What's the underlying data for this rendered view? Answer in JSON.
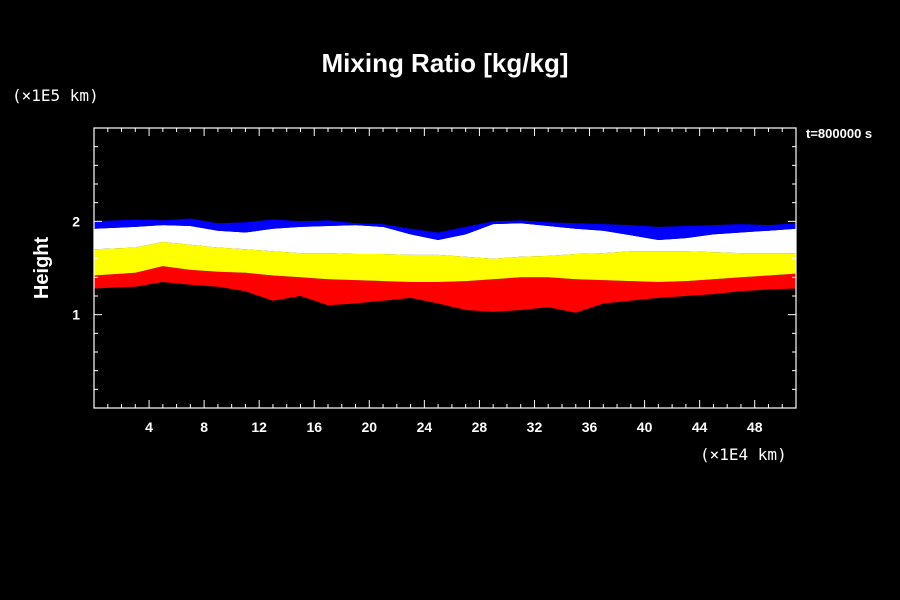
{
  "chart_data": {
    "type": "heatmap",
    "title": "Mixing Ratio [kg/kg]",
    "ylabel": "Height",
    "xlabel": "",
    "x_unit": "(×1E4 km)",
    "y_unit": "(×1E5 km)",
    "time_label": "t=800000 s",
    "xlim": [
      0,
      51
    ],
    "ylim": [
      0,
      3
    ],
    "x_ticks": [
      4,
      8,
      12,
      16,
      20,
      24,
      28,
      32,
      36,
      40,
      44,
      48
    ],
    "y_ticks": [
      1,
      2
    ],
    "grid": false,
    "colors": {
      "background": "#000000",
      "plot": "#000000",
      "text": "#ffffff",
      "frame": "#ffffff"
    },
    "series": [
      {
        "color": "#ff0000",
        "x": [
          0,
          3,
          5,
          7,
          9,
          11,
          13,
          15,
          17,
          19,
          21,
          23,
          25,
          27,
          29,
          31,
          33,
          35,
          37,
          39,
          41,
          43,
          45,
          47,
          49,
          51
        ],
        "lower": [
          1.28,
          1.3,
          1.35,
          1.32,
          1.3,
          1.25,
          1.15,
          1.2,
          1.1,
          1.12,
          1.15,
          1.18,
          1.12,
          1.05,
          1.03,
          1.05,
          1.08,
          1.02,
          1.12,
          1.15,
          1.18,
          1.2,
          1.22,
          1.25,
          1.27,
          1.28
        ],
        "upper": [
          1.42,
          1.45,
          1.52,
          1.48,
          1.46,
          1.45,
          1.42,
          1.4,
          1.38,
          1.37,
          1.36,
          1.35,
          1.35,
          1.36,
          1.38,
          1.4,
          1.4,
          1.38,
          1.37,
          1.36,
          1.35,
          1.36,
          1.38,
          1.4,
          1.42,
          1.44
        ]
      },
      {
        "color": "#ffff00",
        "x": [
          0,
          3,
          5,
          7,
          9,
          11,
          13,
          15,
          17,
          19,
          21,
          23,
          25,
          27,
          29,
          31,
          33,
          35,
          37,
          39,
          41,
          43,
          45,
          47,
          49,
          51
        ],
        "lower": [
          1.42,
          1.45,
          1.52,
          1.48,
          1.46,
          1.45,
          1.42,
          1.4,
          1.38,
          1.37,
          1.36,
          1.35,
          1.35,
          1.36,
          1.38,
          1.4,
          1.4,
          1.38,
          1.37,
          1.36,
          1.35,
          1.36,
          1.38,
          1.4,
          1.42,
          1.44
        ],
        "upper": [
          1.7,
          1.72,
          1.78,
          1.75,
          1.72,
          1.7,
          1.68,
          1.66,
          1.66,
          1.65,
          1.65,
          1.64,
          1.64,
          1.62,
          1.6,
          1.62,
          1.63,
          1.65,
          1.66,
          1.68,
          1.68,
          1.68,
          1.67,
          1.66,
          1.66,
          1.66
        ]
      },
      {
        "color": "#ffffff",
        "x": [
          0,
          3,
          5,
          7,
          9,
          11,
          13,
          15,
          17,
          19,
          21,
          23,
          25,
          27,
          29,
          31,
          33,
          35,
          37,
          39,
          41,
          43,
          45,
          47,
          49,
          51
        ],
        "lower": [
          1.7,
          1.72,
          1.78,
          1.75,
          1.72,
          1.7,
          1.68,
          1.66,
          1.66,
          1.65,
          1.65,
          1.64,
          1.64,
          1.62,
          1.6,
          1.62,
          1.63,
          1.65,
          1.66,
          1.68,
          1.68,
          1.68,
          1.67,
          1.66,
          1.66,
          1.66
        ],
        "upper": [
          1.92,
          1.94,
          1.96,
          1.95,
          1.9,
          1.88,
          1.92,
          1.94,
          1.95,
          1.96,
          1.94,
          1.86,
          1.8,
          1.86,
          1.97,
          1.98,
          1.95,
          1.92,
          1.9,
          1.85,
          1.8,
          1.82,
          1.86,
          1.88,
          1.9,
          1.92
        ]
      },
      {
        "color": "#0000ff",
        "x": [
          0,
          3,
          5,
          7,
          9,
          11,
          13,
          15,
          17,
          19,
          21,
          23,
          25,
          27,
          29,
          31,
          33,
          35,
          37,
          39,
          41,
          43,
          45,
          47,
          49,
          51
        ],
        "lower": [
          1.92,
          1.94,
          1.96,
          1.95,
          1.9,
          1.88,
          1.92,
          1.94,
          1.95,
          1.96,
          1.94,
          1.86,
          1.8,
          1.86,
          1.97,
          1.98,
          1.95,
          1.92,
          1.9,
          1.85,
          1.8,
          1.82,
          1.86,
          1.88,
          1.9,
          1.92
        ],
        "upper": [
          2.0,
          2.02,
          2.01,
          2.03,
          1.98,
          1.99,
          2.02,
          2.0,
          2.01,
          1.98,
          1.97,
          1.92,
          1.88,
          1.94,
          2.0,
          2.01,
          1.99,
          1.98,
          1.97,
          1.96,
          1.94,
          1.95,
          1.96,
          1.97,
          1.96,
          1.98
        ]
      }
    ]
  }
}
